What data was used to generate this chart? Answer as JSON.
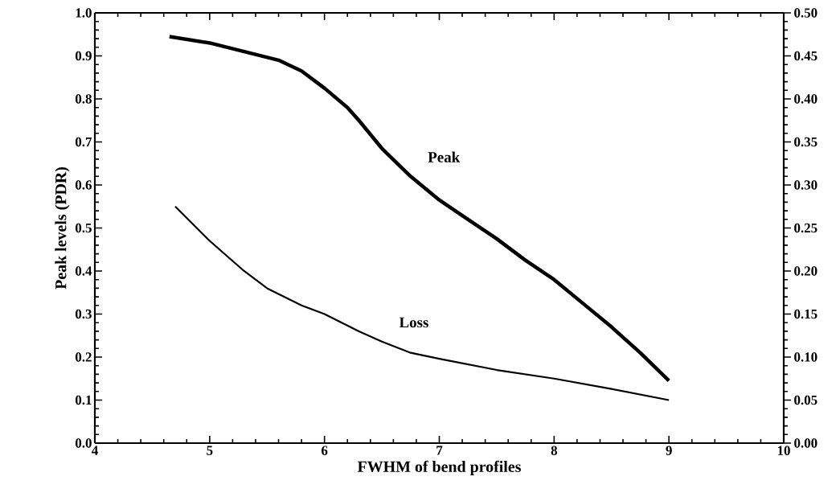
{
  "chart_data": {
    "type": "line",
    "xlabel": "FWHM of bend profiles",
    "ylabel": "Peak levels (PDR)",
    "xlim": [
      4,
      10
    ],
    "xticks": [
      4,
      5,
      6,
      7,
      8,
      9,
      10
    ],
    "ylim": [
      0,
      1
    ],
    "yticks": [
      {
        "value": 0,
        "label": "0.0"
      },
      0.1,
      0.2,
      0.3,
      0.4,
      0.5,
      0.6,
      0.7,
      0.8,
      0.9,
      {
        "value": 1,
        "label": "1.0"
      }
    ],
    "y2lim": [
      0,
      0.5
    ],
    "y2ticks": [
      {
        "value": 0,
        "label": "0.00"
      },
      {
        "value": 0.05,
        "label": "0.05"
      },
      {
        "value": 0.1,
        "label": "0.10"
      },
      {
        "value": 0.15,
        "label": "0.15"
      },
      {
        "value": 0.2,
        "label": "0.20"
      },
      {
        "value": 0.25,
        "label": "0.25"
      },
      {
        "value": 0.3,
        "label": "0.30"
      },
      {
        "value": 0.35,
        "label": "0.35"
      },
      {
        "value": 0.4,
        "label": "0.40"
      },
      {
        "value": 0.45,
        "label": "0.45"
      },
      {
        "value": 0.5,
        "label": "0.50"
      }
    ],
    "grid": false,
    "legend": false,
    "marker": "none",
    "line_style": "solid",
    "series": [
      {
        "name": "Peak",
        "color": "#000000",
        "x": [
          4.65,
          5.0,
          5.3,
          5.6,
          5.8,
          6.0,
          6.2,
          6.3,
          6.5,
          6.75,
          7.0,
          7.25,
          7.5,
          7.75,
          8.0,
          8.25,
          8.5,
          8.75,
          9.0
        ],
        "values": [
          0.945,
          0.93,
          0.91,
          0.89,
          0.865,
          0.825,
          0.78,
          0.75,
          0.685,
          0.62,
          0.565,
          0.52,
          0.475,
          0.425,
          0.38,
          0.325,
          0.27,
          0.21,
          0.145
        ]
      },
      {
        "name": "Loss",
        "axis": "y2",
        "color": "#000000",
        "x": [
          4.7,
          5.0,
          5.3,
          5.5,
          5.8,
          6.0,
          6.3,
          6.5,
          6.75,
          7.0,
          7.5,
          8.0,
          8.5,
          9.0
        ],
        "values": [
          0.275,
          0.235,
          0.2,
          0.18,
          0.16,
          0.15,
          0.13,
          0.118,
          0.105,
          0.098,
          0.085,
          0.075,
          0.063,
          0.05
        ]
      }
    ]
  }
}
